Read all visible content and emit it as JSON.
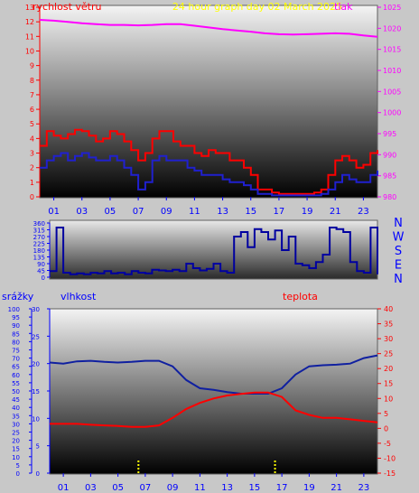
{
  "header": {
    "title": "24 hour graph day   02 March 2025",
    "left_label": "rychlost větru",
    "right_label": "tlak"
  },
  "wind_direction_labels": [
    "N",
    "W",
    "S",
    "E",
    "N"
  ],
  "bottom_labels": {
    "rain": "srážky",
    "humidity": "vlhkost",
    "temperature": "teplota"
  },
  "colors": {
    "wind_speed": "#ff0000",
    "wind_gust": "#2020d0",
    "pressure": "#ff00ff",
    "direction": "#0000a0",
    "humidity": "#1020a0",
    "temperature": "#ff0000",
    "rain": "#ffff00",
    "left_axis_top": "#ff0000",
    "right_axis_top": "#ff00ff",
    "axis_blue": "#0000ff",
    "background": "#c8c8c8"
  },
  "chart_data": [
    {
      "type": "line",
      "title": "",
      "xlabel": "",
      "ylabel": "rychlost větru",
      "y2label": "tlak",
      "xticks": [
        "01",
        "03",
        "05",
        "07",
        "09",
        "11",
        "13",
        "15",
        "17",
        "19",
        "21",
        "23"
      ],
      "xlim": [
        0,
        24
      ],
      "ylim": [
        0,
        13
      ],
      "y2lim": [
        980,
        1025
      ],
      "yticks": [
        0,
        1,
        2,
        3,
        4,
        5,
        6,
        7,
        8,
        9,
        10,
        11,
        12,
        13
      ],
      "y2ticks": [
        980,
        985,
        990,
        995,
        1000,
        1005,
        1010,
        1015,
        1020,
        1025
      ],
      "series": [
        {
          "name": "wind speed",
          "x": [
            0,
            0.5,
            1,
            1.5,
            2,
            2.5,
            3,
            3.5,
            4,
            4.5,
            5,
            5.5,
            6,
            6.5,
            7,
            7.5,
            8,
            8.5,
            9,
            9.5,
            10,
            10.5,
            11,
            11.5,
            12,
            12.5,
            13,
            13.5,
            14,
            14.5,
            15,
            15.5,
            16,
            16.5,
            17,
            17.5,
            18,
            18.5,
            19,
            19.5,
            20,
            20.5,
            21,
            21.5,
            22,
            22.5,
            23,
            23.5,
            24
          ],
          "values": [
            3.5,
            4.5,
            4.2,
            4.0,
            4.3,
            4.6,
            4.5,
            4.2,
            3.8,
            4.0,
            4.5,
            4.3,
            3.8,
            3.2,
            2.5,
            3.0,
            4.0,
            4.5,
            4.5,
            3.8,
            3.5,
            3.5,
            3.0,
            2.8,
            3.2,
            3.0,
            3.0,
            2.5,
            2.5,
            2.0,
            1.5,
            0.5,
            0.5,
            0.3,
            0.2,
            0.2,
            0.2,
            0.2,
            0.2,
            0.3,
            0.5,
            1.5,
            2.5,
            2.8,
            2.5,
            2.0,
            2.2,
            3.0,
            3.2
          ]
        },
        {
          "name": "wind gust",
          "x": [
            0,
            0.5,
            1,
            1.5,
            2,
            2.5,
            3,
            3.5,
            4,
            4.5,
            5,
            5.5,
            6,
            6.5,
            7,
            7.5,
            8,
            8.5,
            9,
            9.5,
            10,
            10.5,
            11,
            11.5,
            12,
            12.5,
            13,
            13.5,
            14,
            14.5,
            15,
            15.5,
            16,
            16.5,
            17,
            17.5,
            18,
            18.5,
            19,
            19.5,
            20,
            20.5,
            21,
            21.5,
            22,
            22.5,
            23,
            23.5,
            24
          ],
          "values": [
            2.0,
            2.5,
            2.8,
            3.0,
            2.5,
            2.8,
            3.0,
            2.7,
            2.5,
            2.5,
            2.8,
            2.5,
            2.0,
            1.5,
            0.5,
            1.0,
            2.5,
            2.8,
            2.5,
            2.5,
            2.5,
            2.0,
            1.8,
            1.5,
            1.5,
            1.5,
            1.2,
            1.0,
            1.0,
            0.8,
            0.5,
            0.2,
            0.2,
            0.1,
            0.1,
            0.1,
            0.1,
            0.1,
            0.1,
            0.1,
            0.2,
            0.5,
            1.0,
            1.5,
            1.2,
            1.0,
            1.0,
            1.5,
            1.8
          ]
        },
        {
          "name": "tlak",
          "axis": "y2",
          "x": [
            0,
            1,
            2,
            3,
            4,
            5,
            6,
            7,
            8,
            9,
            10,
            11,
            12,
            13,
            14,
            15,
            16,
            17,
            18,
            19,
            20,
            21,
            22,
            23,
            24
          ],
          "values": [
            1022,
            1021.8,
            1021.5,
            1021.2,
            1021.0,
            1020.8,
            1020.8,
            1020.7,
            1020.8,
            1021.0,
            1021.0,
            1020.6,
            1020.2,
            1019.8,
            1019.5,
            1019.2,
            1018.8,
            1018.6,
            1018.5,
            1018.6,
            1018.7,
            1018.8,
            1018.7,
            1018.3,
            1018.0
          ]
        }
      ]
    },
    {
      "type": "line",
      "title": "",
      "xlabel": "",
      "ylabel": "",
      "xlim": [
        0,
        24
      ],
      "ylim": [
        0,
        360
      ],
      "yticks": [
        0,
        45,
        90,
        135,
        180,
        225,
        270,
        315,
        360
      ],
      "series": [
        {
          "name": "wind direction",
          "x": [
            0,
            0.5,
            1,
            1.5,
            2,
            2.5,
            3,
            3.5,
            4,
            4.5,
            5,
            5.5,
            6,
            6.5,
            7,
            7.5,
            8,
            8.5,
            9,
            9.5,
            10,
            10.5,
            11,
            11.5,
            12,
            12.5,
            13,
            13.5,
            14,
            14.5,
            15,
            15.5,
            16,
            16.5,
            17,
            17.5,
            18,
            18.5,
            19,
            19.5,
            20,
            20.5,
            21,
            21.5,
            22,
            22.5,
            23,
            23.5,
            24
          ],
          "values": [
            40,
            330,
            30,
            20,
            25,
            20,
            30,
            25,
            40,
            25,
            30,
            20,
            40,
            30,
            25,
            50,
            45,
            40,
            50,
            40,
            90,
            60,
            45,
            55,
            90,
            40,
            30,
            270,
            300,
            200,
            320,
            300,
            250,
            310,
            180,
            270,
            90,
            80,
            60,
            100,
            150,
            330,
            320,
            300,
            100,
            40,
            30,
            330,
            20
          ]
        }
      ]
    },
    {
      "type": "line",
      "title": "",
      "xlabel": "",
      "ylabel": "vlhkost",
      "y2label": "teplota",
      "xticks": [
        "01",
        "03",
        "05",
        "07",
        "09",
        "11",
        "13",
        "15",
        "17",
        "19",
        "21",
        "23"
      ],
      "xlim": [
        0,
        24
      ],
      "rain_lim": [
        0,
        100
      ],
      "rain_ticks": [
        0,
        5,
        10,
        15,
        20,
        25,
        30,
        35,
        40,
        45,
        50,
        55,
        60,
        65,
        70,
        75,
        80,
        85,
        90,
        95,
        100
      ],
      "ylim": [
        0,
        30
      ],
      "yticks": [
        0,
        5,
        10,
        15,
        20,
        25,
        30
      ],
      "y2lim": [
        -15,
        40
      ],
      "y2ticks": [
        -15,
        -10,
        -5,
        0,
        5,
        10,
        15,
        20,
        25,
        30,
        35,
        40
      ],
      "series": [
        {
          "name": "vlhkost",
          "x": [
            0,
            1,
            2,
            3,
            4,
            5,
            6,
            7,
            8,
            9,
            10,
            11,
            12,
            13,
            14,
            15,
            16,
            17,
            18,
            19,
            20,
            21,
            22,
            23,
            24
          ],
          "values": [
            20.2,
            20.0,
            20.4,
            20.5,
            20.3,
            20.2,
            20.3,
            20.5,
            20.5,
            19.5,
            17.0,
            15.5,
            15.2,
            14.8,
            14.5,
            14.5,
            14.5,
            15.5,
            18.0,
            19.5,
            19.7,
            19.8,
            20.0,
            21.0,
            21.5
          ]
        },
        {
          "name": "teplota",
          "axis": "y2",
          "x": [
            0,
            1,
            2,
            3,
            4,
            5,
            6,
            7,
            8,
            9,
            10,
            11,
            12,
            13,
            14,
            15,
            16,
            17,
            18,
            19,
            20,
            21,
            22,
            23,
            24
          ],
          "values": [
            1.5,
            1.5,
            1.5,
            1.2,
            1.0,
            0.8,
            0.5,
            0.5,
            1.0,
            3.5,
            6.5,
            8.5,
            10.0,
            11.0,
            11.5,
            12.0,
            12.0,
            10.5,
            6.0,
            4.5,
            3.5,
            3.5,
            3.0,
            2.5,
            2.0
          ]
        },
        {
          "name": "srážky",
          "axis": "rain",
          "x": [
            6.5,
            16.5
          ],
          "values": [
            8,
            8
          ]
        }
      ]
    }
  ]
}
